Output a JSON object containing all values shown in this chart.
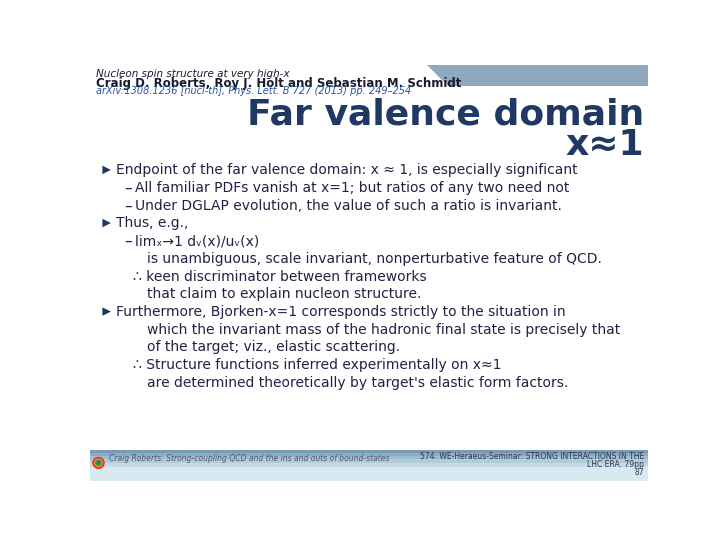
{
  "bg_color": "#ffffff",
  "top_bar_color": "#8fa8c0",
  "title_line1": "Nucleon spin structure at very high-x",
  "title_line2": "Craig D. Roberts, Roy J. Holt and Sebastian M. Schmidt",
  "title_line3": "arXiv:1308.1236 [nucl-th], Phys. Lett. B 727 (2013) pp. 249–254",
  "heading1": "Far valence domain",
  "heading2": "x≈1",
  "heading_color": "#1f3864",
  "body_color": "#222244",
  "bullet_color": "#1f3864",
  "footer_left": "Craig Roberts: Strong-coupling QCD and the ins and outs of bound-states",
  "footer_right1": "574. WE-Heraeus-Seminar: STRONG INTERACTIONS IN THE",
  "footer_right2": "LHC ERA. 79pp",
  "footer_right3": "87",
  "content": [
    {
      "type": "bullet1",
      "text": "Endpoint of the far valence domain: x ≈ 1, is especially significant"
    },
    {
      "type": "bullet2",
      "text": "All familiar PDFs vanish at x=1; but ratios of any two need not"
    },
    {
      "type": "bullet2",
      "text": "Under DGLAP evolution, the value of such a ratio is invariant."
    },
    {
      "type": "bullet1",
      "text": "Thus, e.g.,"
    },
    {
      "type": "bullet2",
      "text": "limₓ→1 dᵥ(x)/uᵥ(x)"
    },
    {
      "type": "bullet3",
      "text": "is unambiguous, scale invariant, nonperturbative feature of QCD."
    },
    {
      "type": "bullet2b",
      "text": "∴ keen discriminator between frameworks"
    },
    {
      "type": "bullet3",
      "text": "that claim to explain nucleon structure."
    },
    {
      "type": "bullet1",
      "text": "Furthermore, Bjorken-x=1 corresponds strictly to the situation in"
    },
    {
      "type": "bullet3",
      "text": "which the invariant mass of the hadronic final state is precisely that"
    },
    {
      "type": "bullet3",
      "text": "of the target; viz., elastic scattering."
    },
    {
      "type": "bullet2b",
      "text": "∴ Structure functions inferred experimentally on x≈1"
    },
    {
      "type": "bullet3",
      "text": "are determined theoretically by target's elastic form factors."
    }
  ]
}
